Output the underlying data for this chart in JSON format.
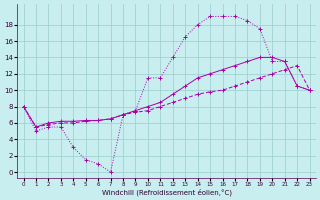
{
  "xlabel": "Windchill (Refroidissement éolien,°C)",
  "bg_color": "#c8eef0",
  "line_color": "#aa00aa",
  "grid_color": "#99cccc",
  "xlim": [
    -0.5,
    23.5
  ],
  "ylim": [
    -0.7,
    20.5
  ],
  "xticks": [
    0,
    1,
    2,
    3,
    4,
    5,
    6,
    7,
    8,
    9,
    10,
    11,
    12,
    13,
    14,
    15,
    16,
    17,
    18,
    19,
    20,
    21,
    22,
    23
  ],
  "yticks": [
    0,
    2,
    4,
    6,
    8,
    10,
    12,
    14,
    16,
    18
  ],
  "curve1_x": [
    0,
    1,
    2,
    3,
    4,
    5,
    6,
    7,
    8,
    9,
    10,
    11,
    12,
    13,
    14,
    15,
    16,
    17,
    18,
    19,
    20,
    21,
    22,
    23
  ],
  "curve1_y": [
    8.0,
    5.0,
    5.5,
    5.5,
    3.0,
    1.5,
    1.0,
    0.0,
    7.0,
    7.5,
    11.5,
    11.5,
    14.0,
    16.5,
    18.0,
    19.0,
    19.0,
    19.0,
    18.5,
    17.5,
    13.5,
    13.5,
    10.5,
    10.0
  ],
  "curve2_x": [
    0,
    1,
    2,
    3,
    4,
    5,
    6,
    7,
    8,
    9,
    10,
    11,
    12,
    13,
    14,
    15,
    16,
    17,
    18,
    19,
    20,
    21,
    22,
    23
  ],
  "curve2_y": [
    8.0,
    5.5,
    6.0,
    6.2,
    6.2,
    6.3,
    6.3,
    6.5,
    7.0,
    7.5,
    8.0,
    8.5,
    9.5,
    10.5,
    11.5,
    12.0,
    12.5,
    13.0,
    13.5,
    14.0,
    14.0,
    13.5,
    10.5,
    10.0
  ],
  "curve3_x": [
    0,
    1,
    2,
    3,
    4,
    5,
    6,
    7,
    8,
    9,
    10,
    11,
    12,
    13,
    14,
    15,
    16,
    17,
    18,
    19,
    20,
    21,
    22,
    23
  ],
  "curve3_y": [
    8.0,
    5.5,
    5.8,
    6.0,
    6.0,
    6.2,
    6.3,
    6.5,
    7.0,
    7.3,
    7.5,
    8.0,
    8.5,
    9.0,
    9.5,
    9.8,
    10.0,
    10.5,
    11.0,
    11.5,
    12.0,
    12.5,
    13.0,
    10.0
  ]
}
